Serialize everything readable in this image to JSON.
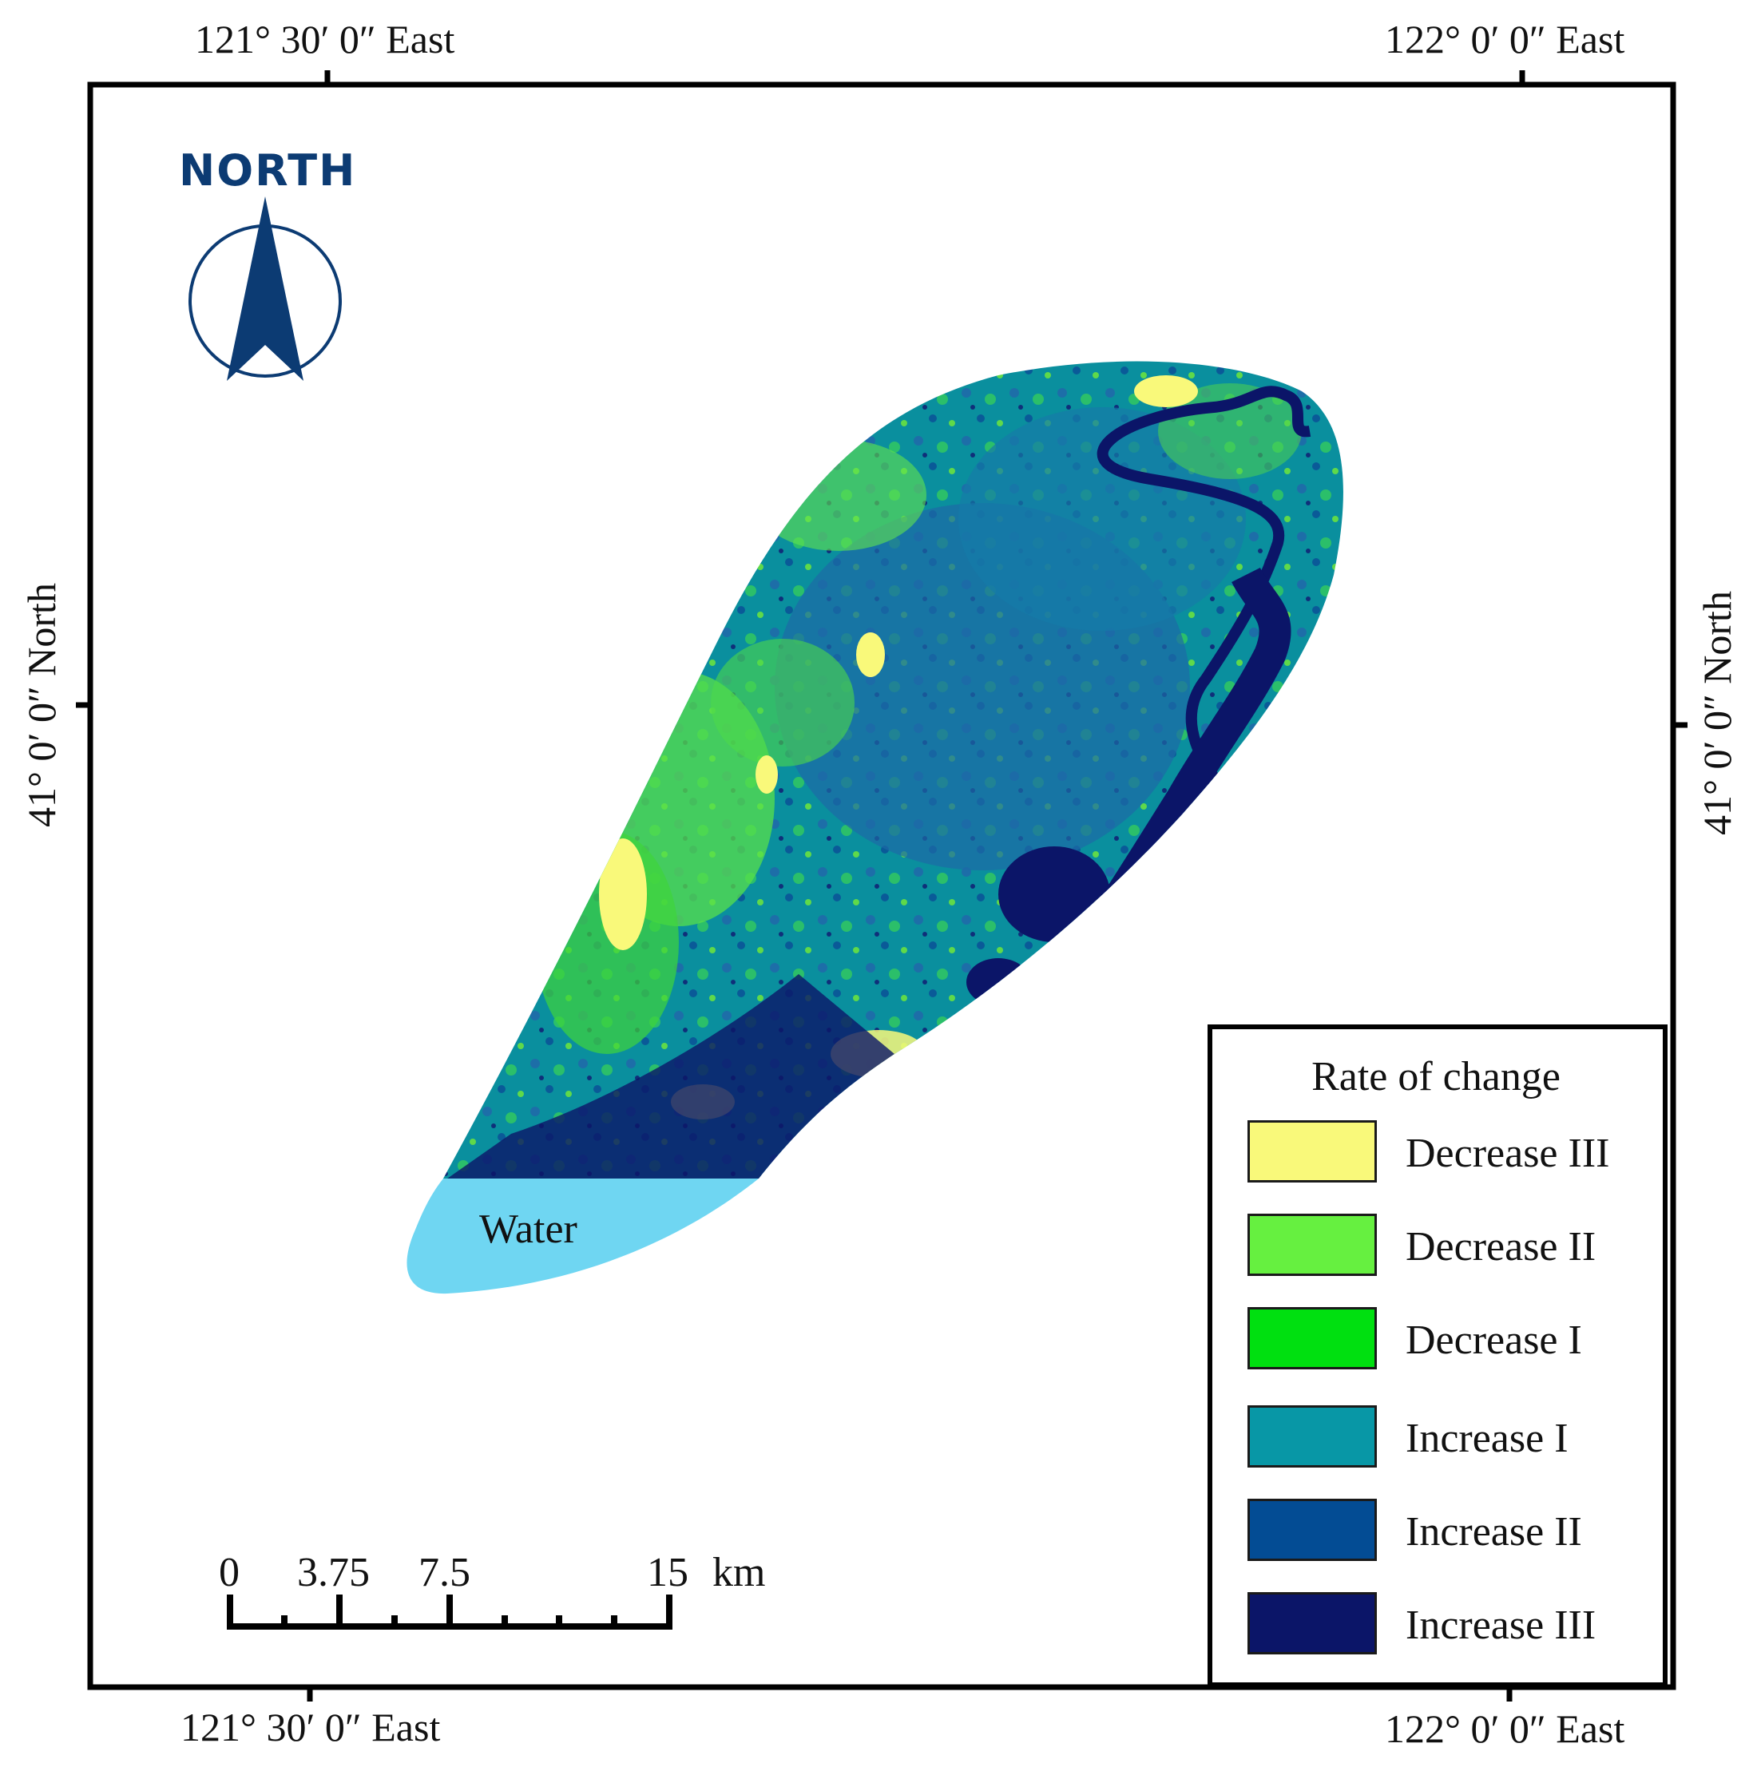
{
  "coordinates": {
    "top_left": "121° 30′ 0″ East",
    "top_right": "122° 0′ 0″ East",
    "bottom_left": "121° 30′ 0″ East",
    "bottom_right": "122° 0′ 0″ East",
    "left": "41° 0′ 0″ North",
    "right": "41° 0′ 0″ North"
  },
  "north_arrow": {
    "label": "NORTH",
    "color": "#0c3b73"
  },
  "water_label": "Water",
  "legend": {
    "title": "Rate of change",
    "items": [
      {
        "label": "Decrease III",
        "color": "#f9f97a"
      },
      {
        "label": "Decrease II",
        "color": "#66f040"
      },
      {
        "label": "Decrease I",
        "color": "#00e010"
      },
      {
        "label": "Increase I",
        "color": "#0897a6"
      },
      {
        "label": "Increase II",
        "color": "#034c94"
      },
      {
        "label": "Increase III",
        "color": "#0b1568"
      }
    ]
  },
  "scale_bar": {
    "ticks": [
      "0",
      "3.75",
      "7.5",
      "15"
    ],
    "unit": "km"
  },
  "colors": {
    "water": "#6fd6f2"
  }
}
